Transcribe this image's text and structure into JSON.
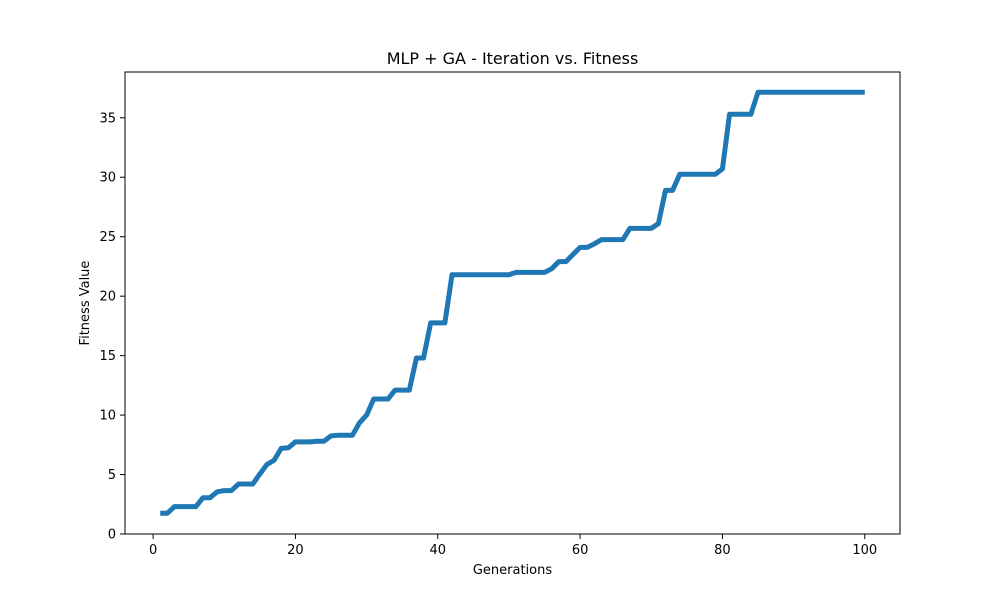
{
  "chart_data": {
    "type": "line",
    "title": "MLP + GA - Iteration vs. Fitness",
    "xlabel": "Generations",
    "ylabel": "Fitness Value",
    "xlim": [
      -3.95,
      104.95
    ],
    "ylim": [
      0,
      38.85
    ],
    "xticks": [
      0,
      20,
      40,
      60,
      80,
      100
    ],
    "yticks": [
      0,
      5,
      10,
      15,
      20,
      25,
      30,
      35
    ],
    "grid": false,
    "line_color": "#1f77b4",
    "series": [
      {
        "x": [
          1,
          2,
          3,
          4,
          5,
          6,
          7,
          8,
          9,
          10,
          11,
          12,
          13,
          14,
          15,
          16,
          17,
          18,
          19,
          20,
          21,
          22,
          23,
          24,
          25,
          26,
          27,
          28,
          29,
          30,
          31,
          32,
          33,
          34,
          35,
          36,
          37,
          38,
          39,
          40,
          41,
          42,
          43,
          44,
          45,
          46,
          47,
          48,
          49,
          50,
          51,
          52,
          53,
          54,
          55,
          56,
          57,
          58,
          59,
          60,
          61,
          62,
          63,
          64,
          65,
          66,
          67,
          68,
          69,
          70,
          71,
          72,
          73,
          74,
          75,
          76,
          77,
          78,
          79,
          80,
          81,
          82,
          83,
          84,
          85,
          86,
          87,
          88,
          89,
          90,
          91,
          92,
          93,
          94,
          95,
          96,
          97,
          98,
          99,
          100
        ],
        "values": [
          1.75,
          1.75,
          2.3,
          2.3,
          2.3,
          2.3,
          3.05,
          3.05,
          3.55,
          3.65,
          3.65,
          4.2,
          4.2,
          4.2,
          5.05,
          5.85,
          6.2,
          7.2,
          7.25,
          7.75,
          7.75,
          7.75,
          7.8,
          7.8,
          8.25,
          8.3,
          8.3,
          8.3,
          9.35,
          10.0,
          11.35,
          11.35,
          11.35,
          12.1,
          12.1,
          12.1,
          14.8,
          14.8,
          17.75,
          17.75,
          17.75,
          21.8,
          21.8,
          21.8,
          21.8,
          21.8,
          21.8,
          21.8,
          21.8,
          21.8,
          22.0,
          22.0,
          22.0,
          22.0,
          22.0,
          22.3,
          22.9,
          22.9,
          23.5,
          24.1,
          24.1,
          24.4,
          24.75,
          24.75,
          24.75,
          24.75,
          25.7,
          25.7,
          25.7,
          25.7,
          26.1,
          28.9,
          28.9,
          30.25,
          30.25,
          30.25,
          30.25,
          30.25,
          30.25,
          30.7,
          35.3,
          35.3,
          35.3,
          35.3,
          37.15,
          37.15,
          37.15,
          37.15,
          37.15,
          37.15,
          37.15,
          37.15,
          37.15,
          37.15,
          37.15,
          37.15,
          37.15,
          37.15,
          37.15,
          37.15
        ]
      }
    ]
  }
}
